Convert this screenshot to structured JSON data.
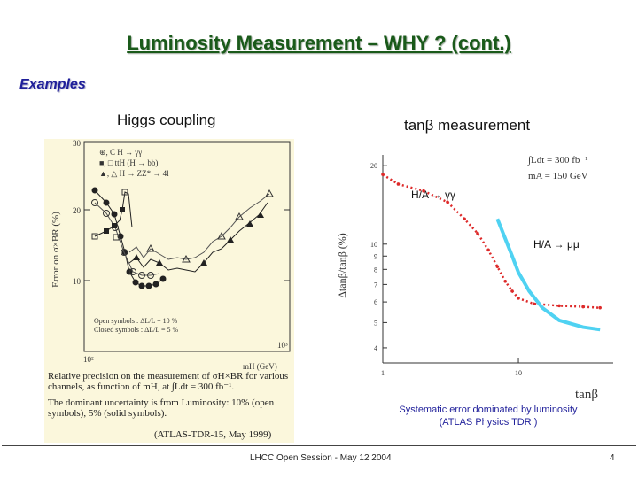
{
  "slide": {
    "title": "Luminosity Measurement – WHY ? (cont.)",
    "section": "Examples",
    "left_heading": "Higgs coupling",
    "right_heading": "tanβ measurement",
    "footer": "LHCC Open Session - May 12 2004",
    "page": "4",
    "right_note_1": "Systematic error dominated by luminosity",
    "right_note_2": "(ATLAS Physics TDR )"
  },
  "left_figure": {
    "ylabel": "Error on σ×BR (%)",
    "xlabel": "mH (GeV)",
    "y_ticks": [
      "30",
      "20",
      "10"
    ],
    "x_ticks": [
      "10²",
      "10³"
    ],
    "legend": [
      "⊕, C    H → γγ",
      "■, □    ttH (H → bb)",
      "▲, △    H → ZZ* → 4l"
    ],
    "notes": [
      "Open symbols :    ΔL/L = 10 %",
      "Closed symbols :  ΔL/L = 5 %"
    ],
    "caption_1": "Relative precision on the measurement of σH×BR for various channels, as function of mH, at ∫Ldt = 300 fb⁻¹.",
    "caption_2": "The dominant uncertainty is from Luminosity: 10% (open symbols), 5% (solid symbols).",
    "source": "(ATLAS-TDR-15, May 1999)"
  },
  "chart_data": {
    "type": "line",
    "title": "tanβ measurement",
    "xlabel": "tanβ",
    "ylabel": "Δtanβ/tanβ (%)",
    "y_ticks": [
      "20",
      "10",
      "9",
      "8",
      "7",
      "6",
      "5",
      "4"
    ],
    "x_ticks": [
      "1",
      "10"
    ],
    "annotations": [
      "∫Ldt = 300 fb⁻¹",
      "mA = 150 GeV",
      "H/A → γγ",
      "H/A → μμ"
    ],
    "series": [
      {
        "name": "H/A → γγ",
        "color": "#dd2a2a",
        "style": "dotted",
        "x": [
          1.0,
          1.3,
          2,
          3,
          4,
          5,
          6,
          7,
          8,
          9,
          10,
          13,
          20,
          30,
          40
        ],
        "y": [
          18.5,
          17.0,
          16.0,
          14.5,
          12.5,
          11.0,
          9.5,
          8.2,
          7.2,
          6.6,
          6.2,
          5.9,
          5.8,
          5.75,
          5.7
        ]
      },
      {
        "name": "H/A → μμ",
        "color": "#4fd2f2",
        "style": "solid",
        "x": [
          7,
          8,
          9,
          10,
          12,
          15,
          20,
          30,
          40
        ],
        "y": [
          12.5,
          10.5,
          9.0,
          7.8,
          6.6,
          5.7,
          5.1,
          4.8,
          4.7
        ]
      }
    ]
  },
  "colors": {
    "title": "#1a5a1a",
    "section": "#1f1f9a",
    "gamma_curve": "#dd2a2a",
    "mu_curve": "#4fd2f2"
  }
}
